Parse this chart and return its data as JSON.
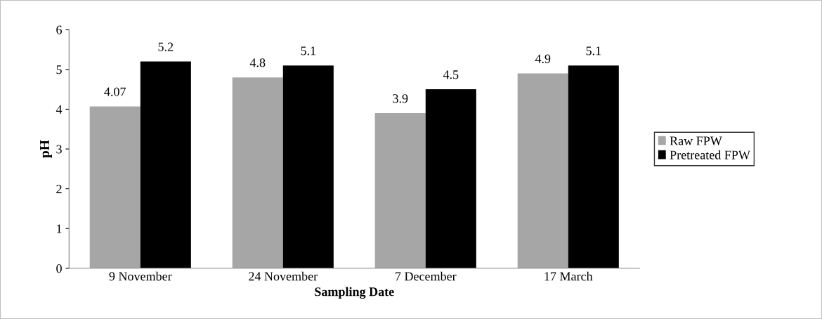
{
  "chart_data": {
    "type": "bar",
    "xlabel": "Sampling Date",
    "ylabel": "pH",
    "categories": [
      "9 November",
      "24 November",
      "7 December",
      "17 March"
    ],
    "series": [
      {
        "name": "Raw FPW",
        "color": "#a6a6a6",
        "values": [
          4.07,
          4.8,
          3.9,
          4.9
        ]
      },
      {
        "name": "Pretreated FPW",
        "color": "#000000",
        "values": [
          5.2,
          5.1,
          4.5,
          5.1
        ]
      }
    ],
    "ylim": [
      0,
      6
    ],
    "yticks": [
      0,
      1,
      2,
      3,
      4,
      5,
      6
    ],
    "grid": false,
    "legend": "right",
    "data_labels": true
  }
}
